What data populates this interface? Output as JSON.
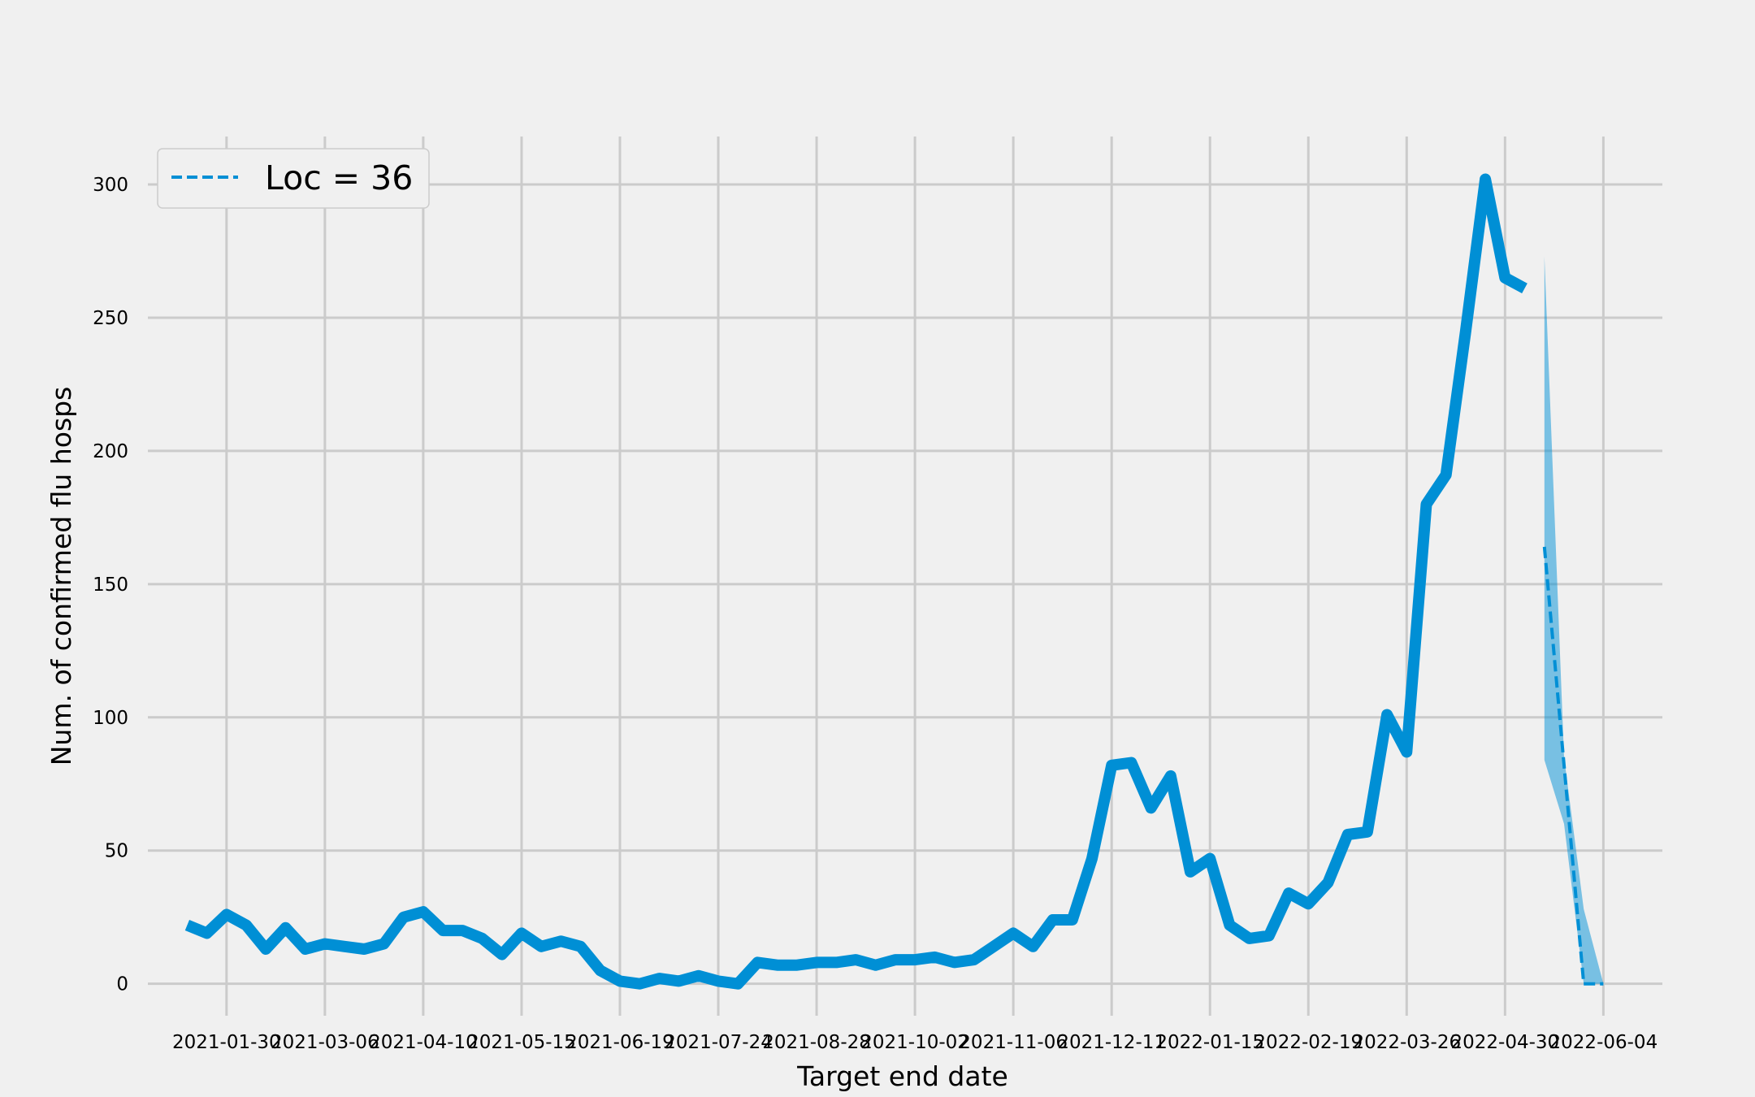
{
  "chart_data": {
    "type": "line",
    "title": "",
    "xlabel": "Target end date",
    "ylabel": "Num. of confirmed flu hosps",
    "ylim": [
      -12,
      318
    ],
    "xlim": [
      "2021-01-02",
      "2022-06-25"
    ],
    "yticks": [
      0,
      50,
      100,
      150,
      200,
      250,
      300
    ],
    "xticks": [
      "2021-01-30",
      "2021-03-06",
      "2021-04-10",
      "2021-05-15",
      "2021-06-19",
      "2021-07-24",
      "2021-08-28",
      "2021-10-02",
      "2021-11-06",
      "2021-12-11",
      "2022-01-15",
      "2022-02-19",
      "2022-03-26",
      "2022-04-30",
      "2022-06-04"
    ],
    "grid": true,
    "legend": {
      "placement": "top-left",
      "entries": [
        "Loc = 36"
      ]
    },
    "colors": {
      "observed": "#008fd5",
      "forecast": "#008fd5",
      "band": "#008fd5",
      "grid": "#cbcbcb",
      "background": "#f0f0f0"
    },
    "series": [
      {
        "style": "solid",
        "points": [
          [
            "2021-01-16",
            22
          ],
          [
            "2021-01-23",
            19
          ],
          [
            "2021-01-30",
            26
          ],
          [
            "2021-02-06",
            22
          ],
          [
            "2021-02-13",
            13
          ],
          [
            "2021-02-20",
            21
          ],
          [
            "2021-02-27",
            13
          ],
          [
            "2021-03-06",
            15
          ],
          [
            "2021-03-13",
            14
          ],
          [
            "2021-03-20",
            13
          ],
          [
            "2021-03-27",
            15
          ],
          [
            "2021-04-03",
            25
          ],
          [
            "2021-04-10",
            27
          ],
          [
            "2021-04-17",
            20
          ],
          [
            "2021-04-24",
            20
          ],
          [
            "2021-05-01",
            17
          ],
          [
            "2021-05-08",
            11
          ],
          [
            "2021-05-15",
            19
          ],
          [
            "2021-05-22",
            14
          ],
          [
            "2021-05-29",
            16
          ],
          [
            "2021-06-05",
            14
          ],
          [
            "2021-06-12",
            5
          ],
          [
            "2021-06-19",
            1
          ],
          [
            "2021-06-26",
            0
          ],
          [
            "2021-07-03",
            2
          ],
          [
            "2021-07-10",
            1
          ],
          [
            "2021-07-17",
            3
          ],
          [
            "2021-07-24",
            1
          ],
          [
            "2021-07-31",
            0
          ],
          [
            "2021-08-07",
            8
          ],
          [
            "2021-08-14",
            7
          ],
          [
            "2021-08-21",
            7
          ],
          [
            "2021-08-28",
            8
          ],
          [
            "2021-09-04",
            8
          ],
          [
            "2021-09-11",
            9
          ],
          [
            "2021-09-18",
            7
          ],
          [
            "2021-09-25",
            9
          ],
          [
            "2021-10-02",
            9
          ],
          [
            "2021-10-09",
            10
          ],
          [
            "2021-10-16",
            8
          ],
          [
            "2021-10-23",
            9
          ],
          [
            "2021-10-30",
            14
          ],
          [
            "2021-11-06",
            19
          ],
          [
            "2021-11-13",
            14
          ],
          [
            "2021-11-20",
            24
          ],
          [
            "2021-11-27",
            24
          ],
          [
            "2021-12-04",
            47
          ],
          [
            "2021-12-11",
            82
          ],
          [
            "2021-12-18",
            83
          ],
          [
            "2021-12-25",
            66
          ],
          [
            "2022-01-01",
            78
          ],
          [
            "2022-01-08",
            42
          ],
          [
            "2022-01-15",
            47
          ],
          [
            "2022-01-22",
            22
          ],
          [
            "2022-01-29",
            17
          ],
          [
            "2022-02-05",
            18
          ],
          [
            "2022-02-12",
            34
          ],
          [
            "2022-02-19",
            30
          ],
          [
            "2022-02-26",
            38
          ],
          [
            "2022-03-05",
            56
          ],
          [
            "2022-03-12",
            57
          ],
          [
            "2022-03-19",
            101
          ],
          [
            "2022-03-26",
            87
          ],
          [
            "2022-04-02",
            180
          ],
          [
            "2022-04-09",
            191
          ],
          [
            "2022-04-16",
            245
          ],
          [
            "2022-04-23",
            302
          ],
          [
            "2022-04-30",
            265
          ],
          [
            "2022-05-07",
            261
          ]
        ]
      },
      {
        "name": "Loc = 36",
        "style": "dashed",
        "points": [
          [
            "2022-05-14",
            164
          ],
          [
            "2022-05-21",
            82
          ],
          [
            "2022-05-28",
            0
          ],
          [
            "2022-06-04",
            0
          ]
        ]
      }
    ],
    "band": {
      "points": [
        [
          "2022-05-14",
          84,
          273
        ],
        [
          "2022-05-21",
          60,
          85
        ],
        [
          "2022-05-28",
          0,
          28
        ],
        [
          "2022-06-04",
          0,
          0
        ]
      ]
    }
  }
}
